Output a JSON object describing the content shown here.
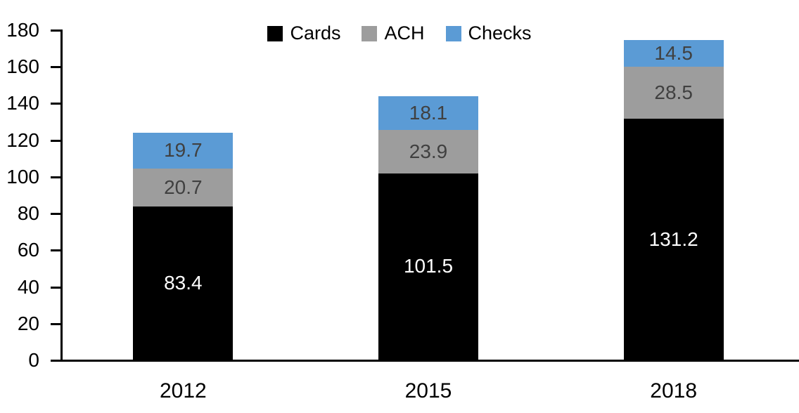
{
  "chart_data": {
    "type": "bar",
    "stacked": true,
    "title": "",
    "xlabel": "",
    "ylabel": "",
    "categories": [
      "2012",
      "2015",
      "2018"
    ],
    "series": [
      {
        "name": "Cards",
        "color": "#000000",
        "label_color": "#ffffff",
        "values": [
          83.4,
          101.5,
          131.2
        ]
      },
      {
        "name": "ACH",
        "color": "#9d9d9d",
        "label_color": "#404040",
        "values": [
          20.7,
          23.9,
          28.5
        ]
      },
      {
        "name": "Checks",
        "color": "#5b9bd5",
        "label_color": "#404040",
        "values": [
          19.7,
          18.1,
          14.5
        ]
      }
    ],
    "ylim": [
      0,
      180
    ],
    "y_ticks": [
      "0",
      "20",
      "40",
      "60",
      "80",
      "100",
      "120",
      "140",
      "160",
      "180"
    ],
    "grid": false,
    "legend_position": "top-center",
    "axis_color": "#000000"
  }
}
